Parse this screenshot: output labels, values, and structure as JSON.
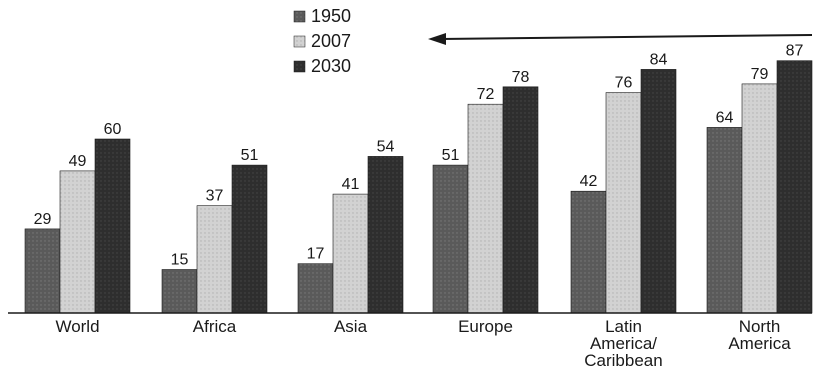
{
  "chart_data": {
    "type": "bar",
    "title": "",
    "xlabel": "",
    "ylabel": "",
    "ylim": [
      0,
      90
    ],
    "grid": false,
    "legend_position": "top-center",
    "categories": [
      "World",
      "Africa",
      "Asia",
      "Europe",
      "Latin America/ Caribbean",
      "North America"
    ],
    "category_lines": [
      [
        "World"
      ],
      [
        "Africa"
      ],
      [
        "Asia"
      ],
      [
        "Europe"
      ],
      [
        "Latin",
        "America/",
        "Caribbean"
      ],
      [
        "North",
        "America"
      ]
    ],
    "series": [
      {
        "name": "1950",
        "color": "#5a5a5a",
        "values": [
          29,
          15,
          17,
          51,
          42,
          64
        ]
      },
      {
        "name": "2007",
        "color": "#d2d2d2",
        "values": [
          49,
          37,
          41,
          72,
          76,
          79
        ]
      },
      {
        "name": "2030",
        "color": "#2e2e2e",
        "values": [
          60,
          51,
          54,
          78,
          84,
          87
        ]
      }
    ],
    "annotations": [
      {
        "type": "arrow",
        "direction": "left",
        "description": "trend arrow pointing left above Europe, Latin America and North America"
      }
    ]
  }
}
